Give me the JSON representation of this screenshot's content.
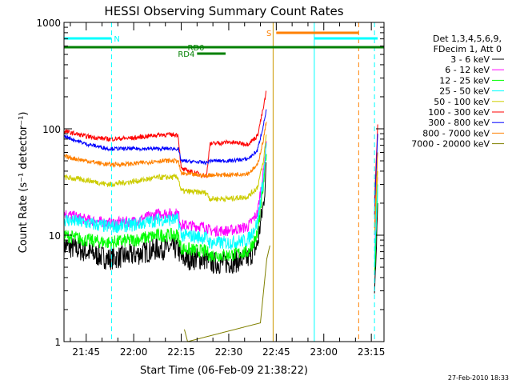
{
  "figure": {
    "footer_date": "27-Feb-2010 18:33"
  },
  "chart_data": {
    "type": "line",
    "title": "HESSI Observing Summary Count Rates",
    "xlabel": "Start Time (06-Feb-09 21:38:22)",
    "ylabel": "Count Rate (s⁻¹ detector⁻¹)",
    "yscale": "log",
    "ylim": [
      1,
      1000
    ],
    "xlim": [
      "21:38",
      "23:19"
    ],
    "x_ticks": [
      "21:45",
      "22:00",
      "22:15",
      "22:30",
      "22:45",
      "23:00",
      "23:15"
    ],
    "y_ticks": [
      "1",
      "10",
      "100",
      "1000"
    ],
    "grid": false,
    "legend": {
      "placement": "right",
      "header": [
        "Det 1,3,4,5,6,9,",
        "FDecim 1, Att 0"
      ],
      "entries": [
        {
          "label": "3 - 6 keV",
          "color": "#000000"
        },
        {
          "label": "6 - 12 keV",
          "color": "#ff00ff"
        },
        {
          "label": "12 - 25 keV",
          "color": "#00ff00"
        },
        {
          "label": "25 - 50 keV",
          "color": "#00ffff"
        },
        {
          "label": "50 - 100 keV",
          "color": "#cccc00"
        },
        {
          "label": "100 - 300 keV",
          "color": "#ff0000"
        },
        {
          "label": "300 - 800 keV",
          "color": "#0000ff"
        },
        {
          "label": "800 - 7000 keV",
          "color": "#ff8000"
        },
        {
          "label": "7000 - 20000 keV",
          "color": "#808000"
        }
      ]
    },
    "flags": [
      {
        "label": "N",
        "color": "#00ffff",
        "start": "21:38",
        "end": "21:53"
      },
      {
        "label": "S",
        "color": "#ff8000",
        "start": "22:45",
        "end": "23:11"
      },
      {
        "label": "",
        "color": "#00ffff",
        "start": "22:57",
        "end": "23:17"
      },
      {
        "label": "RD0",
        "color": "#008000",
        "start": "21:38",
        "end": "23:19"
      },
      {
        "label": "RD4",
        "color": "#008000",
        "start": "22:20",
        "end": "22:29"
      }
    ],
    "vlines": [
      {
        "time": "21:38",
        "color": "#00ffff",
        "style": "solid"
      },
      {
        "time": "21:53",
        "color": "#00ffff",
        "style": "dashed"
      },
      {
        "time": "22:44",
        "color": "#cc9900",
        "style": "solid"
      },
      {
        "time": "22:57",
        "color": "#00ffff",
        "style": "solid"
      },
      {
        "time": "23:11",
        "color": "#ff8000",
        "style": "dashed"
      },
      {
        "time": "23:16",
        "color": "#00ffff",
        "style": "dashed"
      }
    ],
    "series": [
      {
        "name": "3 - 6 keV",
        "color": "#000000",
        "x": [
          "21:38",
          "21:45",
          "21:52",
          "22:00",
          "22:08",
          "22:14",
          "22:15",
          "22:23",
          "22:24",
          "22:30",
          "22:36",
          "22:39",
          "22:41",
          "22:42",
          "23:16",
          "23:17"
        ],
        "y": [
          8,
          7,
          6,
          6.5,
          7.5,
          7.5,
          6,
          6,
          5.5,
          5.5,
          6,
          8,
          20,
          50,
          3,
          20
        ],
        "noise": 0.25
      },
      {
        "name": "6 - 12 keV",
        "color": "#ff00ff",
        "x": [
          "21:38",
          "21:45",
          "21:52",
          "22:00",
          "22:08",
          "22:14",
          "22:15",
          "22:23",
          "22:24",
          "22:30",
          "22:36",
          "22:39",
          "22:41",
          "22:42",
          "23:16",
          "23:17"
        ],
        "y": [
          16,
          14,
          13,
          13.5,
          16,
          16,
          12.5,
          12,
          11,
          11,
          12,
          16,
          40,
          90,
          6,
          35
        ],
        "noise": 0.12
      },
      {
        "name": "12 - 25 keV",
        "color": "#00ff00",
        "x": [
          "21:38",
          "21:45",
          "21:52",
          "22:00",
          "22:08",
          "22:14",
          "22:15",
          "22:23",
          "22:24",
          "22:30",
          "22:36",
          "22:39",
          "22:41",
          "22:42",
          "23:16",
          "23:17"
        ],
        "y": [
          10,
          9,
          8.5,
          9,
          10,
          10,
          7.5,
          7,
          6.5,
          6.5,
          7,
          10,
          30,
          70,
          4,
          30
        ],
        "noise": 0.15
      },
      {
        "name": "25 - 50 keV",
        "color": "#00ffff",
        "x": [
          "21:38",
          "21:45",
          "21:52",
          "22:00",
          "22:08",
          "22:14",
          "22:15",
          "22:23",
          "22:24",
          "22:30",
          "22:36",
          "22:39",
          "22:41",
          "22:42",
          "23:16",
          "23:17"
        ],
        "y": [
          14,
          13,
          12,
          12.5,
          14,
          14,
          10,
          9.5,
          8.5,
          8.5,
          9,
          13,
          35,
          80,
          5,
          30
        ],
        "noise": 0.15
      },
      {
        "name": "50 - 100 keV",
        "color": "#cccc00",
        "x": [
          "21:38",
          "21:45",
          "21:52",
          "22:00",
          "22:08",
          "22:14",
          "22:15",
          "22:23",
          "22:24",
          "22:30",
          "22:36",
          "22:39",
          "22:41",
          "22:42",
          "23:16",
          "23:17"
        ],
        "y": [
          35,
          33,
          30,
          32,
          35,
          35,
          26,
          25,
          22,
          22,
          23,
          28,
          50,
          100,
          10,
          40
        ],
        "noise": 0.06
      },
      {
        "name": "100 - 300 keV",
        "color": "#ff0000",
        "x": [
          "21:38",
          "21:45",
          "21:52",
          "22:00",
          "22:08",
          "22:14",
          "22:15",
          "22:23",
          "22:24",
          "22:30",
          "22:36",
          "22:39",
          "22:41",
          "22:42",
          "23:16",
          "23:17"
        ],
        "y": [
          95,
          85,
          80,
          82,
          88,
          88,
          42,
          36,
          72,
          75,
          72,
          85,
          160,
          240,
          20,
          110
        ],
        "noise": 0.05
      },
      {
        "name": "300 - 800 keV",
        "color": "#0000ff",
        "x": [
          "21:38",
          "21:45",
          "21:52",
          "22:00",
          "22:08",
          "22:14",
          "22:15",
          "22:23",
          "22:24",
          "22:30",
          "22:36",
          "22:39",
          "22:41",
          "22:42",
          "23:16",
          "23:17"
        ],
        "y": [
          85,
          72,
          65,
          65,
          65,
          65,
          50,
          48,
          50,
          50,
          52,
          62,
          110,
          160,
          15,
          90
        ],
        "noise": 0.04
      },
      {
        "name": "800 - 7000 keV",
        "color": "#ff8000",
        "x": [
          "21:38",
          "21:45",
          "21:52",
          "22:00",
          "22:08",
          "22:14",
          "22:15",
          "22:23",
          "22:24",
          "22:30",
          "22:36",
          "22:39",
          "22:41",
          "22:42",
          "23:16",
          "23:17"
        ],
        "y": [
          55,
          50,
          46,
          47,
          50,
          50,
          38,
          36,
          37,
          37,
          38,
          45,
          80,
          125,
          12,
          60
        ],
        "noise": 0.05
      },
      {
        "name": "7000 - 20000 keV",
        "color": "#808000",
        "x": [
          "22:16",
          "22:17",
          "22:40",
          "22:41",
          "22:42",
          "22:43"
        ],
        "y": [
          1.3,
          1,
          1.5,
          3,
          6,
          8
        ],
        "noise": 0
      }
    ]
  }
}
